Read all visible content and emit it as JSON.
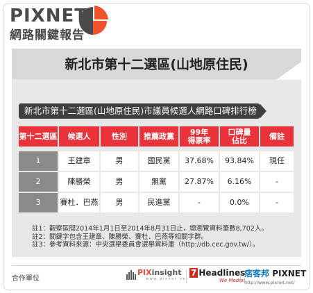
{
  "brand": {
    "name": "PIXNET",
    "subtitle": "網路關鍵報告"
  },
  "title": "新北市第十二選區(山地原住民)",
  "subtitle": "新北市第十二選區(山地原住民)市議員候選人網路口碑排行榜",
  "table": {
    "headers": [
      "第十二選區",
      "候選人",
      "性別",
      "推薦政黨",
      "99年\n得票率",
      "口碑量\n佔比",
      "備註"
    ],
    "rows": [
      [
        "1",
        "王建章",
        "男",
        "國民黨",
        "37.68%",
        "93.84%",
        "現任"
      ],
      [
        "2",
        "陳勝榮",
        "男",
        "無黨",
        "27.87%",
        "6.16%",
        "-"
      ],
      [
        "3",
        "賽杜．巴燕",
        "男",
        "民進黨",
        "-",
        "0.0%",
        "-"
      ]
    ]
  },
  "notes": [
    "註1：觀察區間2014年1月1日至2014年8月31日止，總瀏覽資料筆數8,702人。",
    "註2：關鍵字包含王建章、陳勝榮、賽杜．巴燕等相關字群。",
    "註3：參考資料來源：中央選舉委員會選舉資料庫（http://db.cec.gov.tw/）。"
  ],
  "footer": {
    "cooperation": "合作單位",
    "logo_pixinsight_a": "PIX",
    "logo_pixinsight_b": "insight",
    "logo_pixinsight_sub": "w w w . p i x n e t . n e t",
    "logo_headlines_num": "7",
    "logo_headlines": "Headlines",
    "logo_headlines_tag": "We Media!",
    "logo_pixnet_cn": "痞客邦",
    "logo_pixnet": "PIXNET",
    "logo_pixnet_url": "http://www.pixnet.net/"
  },
  "colors": {
    "accent_red": "#e9323a",
    "pie_orange": "#f0542d",
    "dark_gray": "#3f3f3f"
  }
}
